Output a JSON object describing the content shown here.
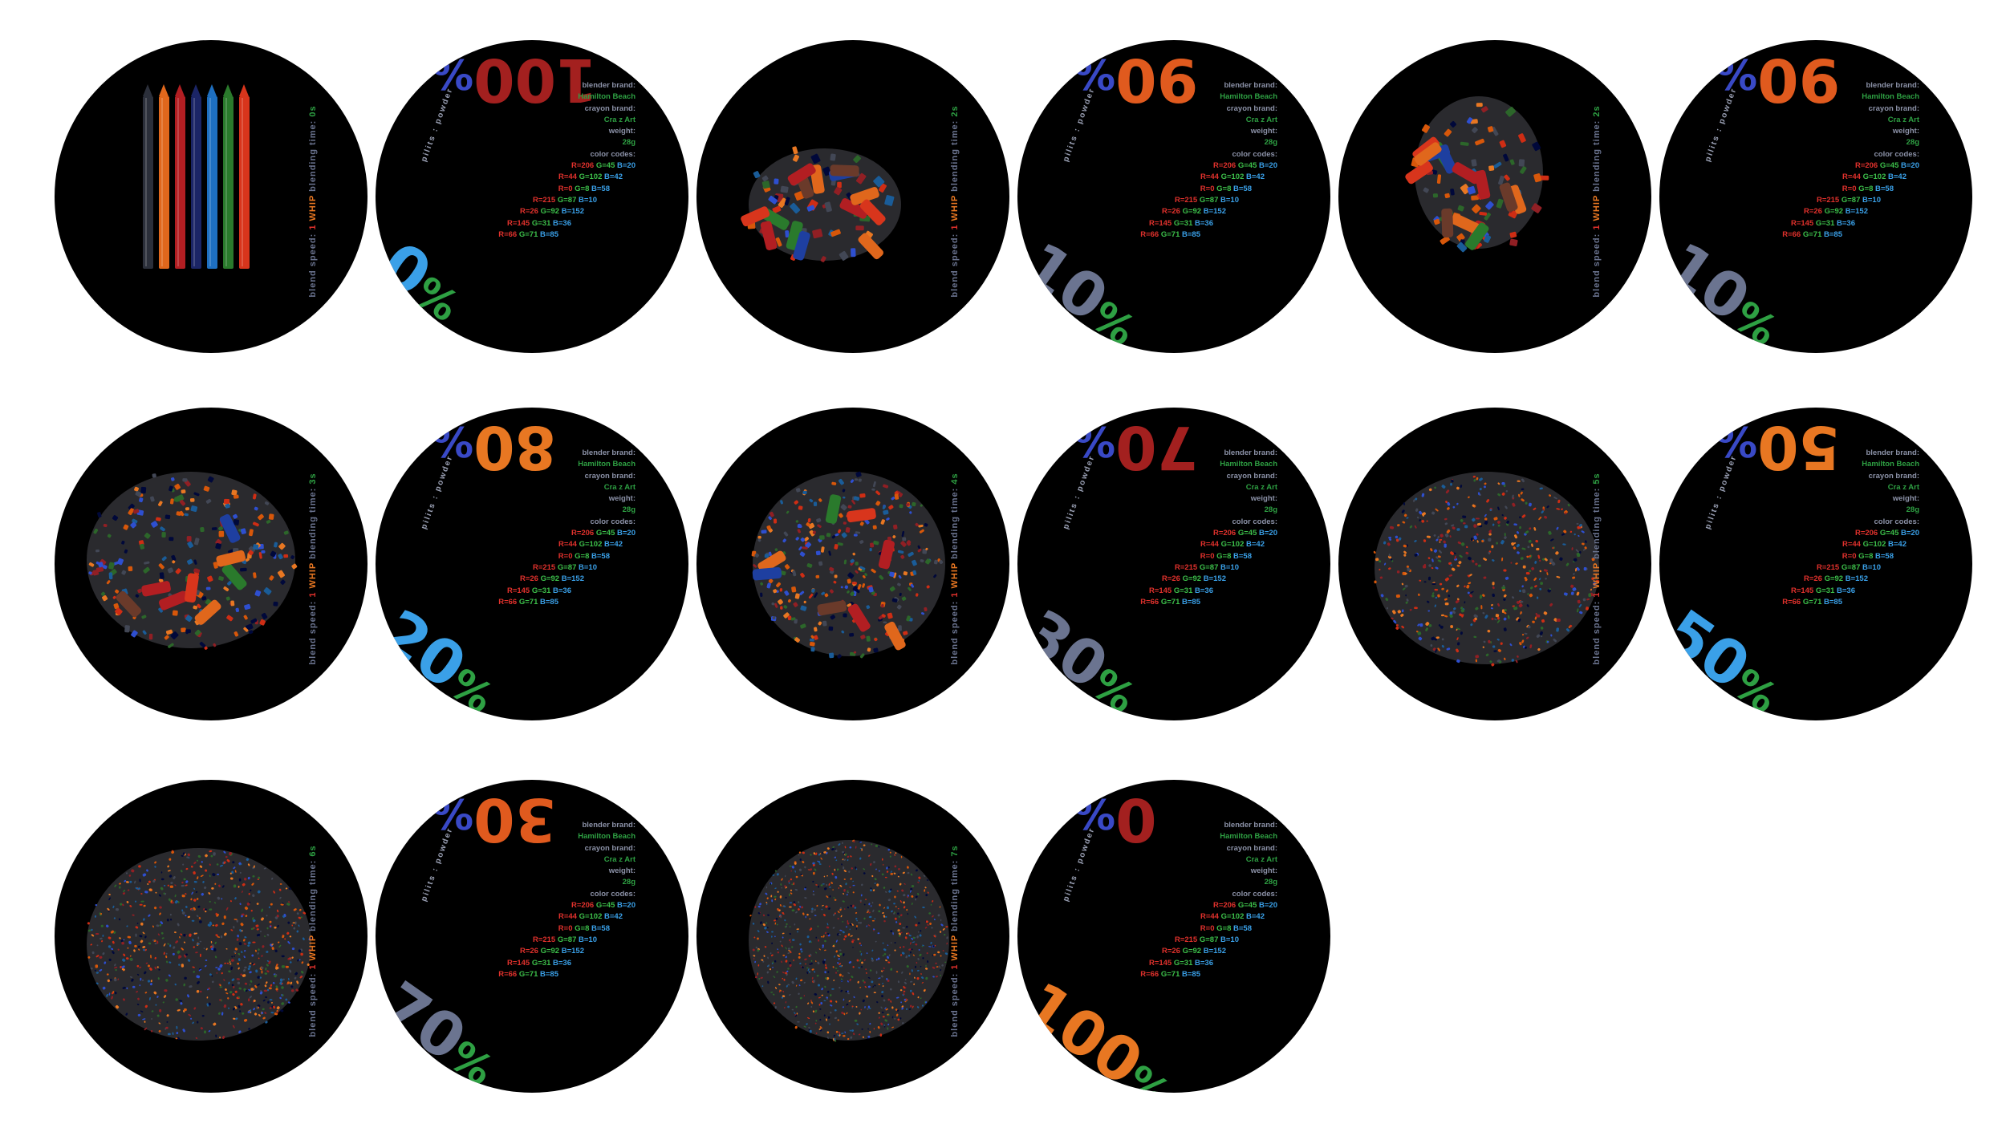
{
  "side_label": {
    "prefix": "blend speed: ",
    "speed": "1",
    "whip": "WHIP",
    "mid": " blending time: ",
    "units": "s"
  },
  "powder_label": "pilits : powder",
  "info": {
    "blender_brand_label": "blender brand:",
    "blender_brand": "Hamilton Beach",
    "crayon_brand_label": "crayon brand:",
    "crayon_brand": "Cra z Art",
    "weight_label": "weight:",
    "weight": "28g",
    "color_codes_label": "color codes:",
    "color_codes": [
      {
        "r": "R=206",
        "g": "G=45",
        "b": "B=20"
      },
      {
        "r": "R=44",
        "g": "G=102",
        "b": "B=42"
      },
      {
        "r": "R=0",
        "g": "G=8",
        "b": "B=58"
      },
      {
        "r": "R=215",
        "g": "G=87",
        "b": "B=10"
      },
      {
        "r": "R=26",
        "g": "G=92",
        "b": "B=152"
      },
      {
        "r": "R=145",
        "g": "G=31",
        "b": "B=36"
      },
      {
        "r": "R=66",
        "g": "G=71",
        "b": "B=85"
      }
    ]
  },
  "samples": [
    {
      "time": "0",
      "top": "100",
      "bottom": "0",
      "top_color": "#a3201f",
      "bottom_color": "#3aa0e8",
      "stage": "crayons"
    },
    {
      "time": "2",
      "top": "90",
      "bottom": "10",
      "top_color": "#e05a1e",
      "bottom_color": "#6b7490",
      "stage": "chunks"
    },
    {
      "time": "2",
      "top": "90",
      "bottom": "10",
      "top_color": "#e05a1e",
      "bottom_color": "#6b7490",
      "stage": "chunks2"
    },
    {
      "time": "3",
      "top": "80",
      "bottom": "20",
      "top_color": "#e87722",
      "bottom_color": "#3aa0e8",
      "stage": "pieces"
    },
    {
      "time": "4",
      "top": "70",
      "bottom": "30",
      "top_color": "#a3201f",
      "bottom_color": "#6b7490",
      "stage": "pieces2"
    },
    {
      "time": "5",
      "top": "50",
      "bottom": "50",
      "top_color": "#e87722",
      "bottom_color": "#3aa0e8",
      "stage": "crumbs"
    },
    {
      "time": "6",
      "top": "30",
      "bottom": "70",
      "top_color": "#e05a1e",
      "bottom_color": "#6b7490",
      "stage": "fine"
    },
    {
      "time": "7",
      "top": "0",
      "bottom": "100",
      "top_color": "#a3201f",
      "bottom_color": "#e87722",
      "stage": "powder"
    }
  ],
  "palette": [
    "#ce2d14",
    "#2c662a",
    "#00083a",
    "#d7570a",
    "#1a5c98",
    "#911f24",
    "#424755",
    "#e87722",
    "#2e4fd0"
  ]
}
